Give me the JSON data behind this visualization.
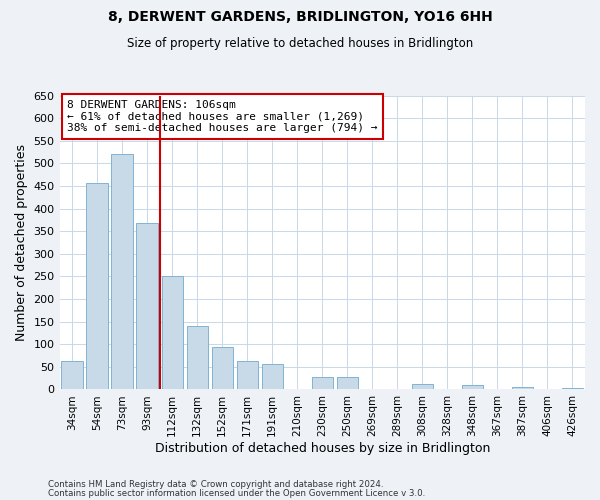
{
  "title": "8, DERWENT GARDENS, BRIDLINGTON, YO16 6HH",
  "subtitle": "Size of property relative to detached houses in Bridlington",
  "xlabel": "Distribution of detached houses by size in Bridlington",
  "ylabel": "Number of detached properties",
  "categories": [
    "34sqm",
    "54sqm",
    "73sqm",
    "93sqm",
    "112sqm",
    "132sqm",
    "152sqm",
    "171sqm",
    "191sqm",
    "210sqm",
    "230sqm",
    "250sqm",
    "269sqm",
    "289sqm",
    "308sqm",
    "328sqm",
    "348sqm",
    "367sqm",
    "387sqm",
    "406sqm",
    "426sqm"
  ],
  "values": [
    62,
    456,
    521,
    369,
    250,
    140,
    93,
    62,
    57,
    0,
    28,
    28,
    0,
    0,
    12,
    0,
    10,
    0,
    5,
    0,
    3
  ],
  "bar_color": "#c8d9e8",
  "bar_edgecolor": "#7fb3d3",
  "vline_color": "#cc0000",
  "vline_index": 3.5,
  "annotation_title": "8 DERWENT GARDENS: 106sqm",
  "annotation_line1": "← 61% of detached houses are smaller (1,269)",
  "annotation_line2": "38% of semi-detached houses are larger (794) →",
  "annotation_box_edgecolor": "#cc0000",
  "ylim": [
    0,
    650
  ],
  "yticks": [
    0,
    50,
    100,
    150,
    200,
    250,
    300,
    350,
    400,
    450,
    500,
    550,
    600,
    650
  ],
  "footer1": "Contains HM Land Registry data © Crown copyright and database right 2024.",
  "footer2": "Contains public sector information licensed under the Open Government Licence v 3.0.",
  "bg_color": "#eef2f7",
  "plot_bg_color": "#ffffff",
  "grid_color": "#c8d8e8"
}
